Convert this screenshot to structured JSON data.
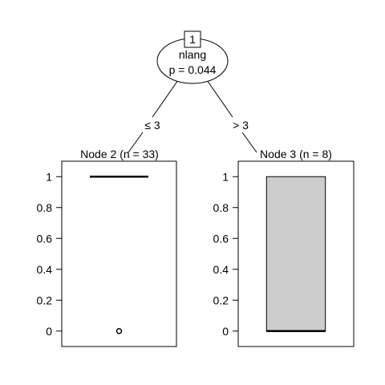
{
  "chart_data": {
    "type": "decision-tree",
    "root": {
      "id": "1",
      "variable": "nlang",
      "p_label": "p = 0.044"
    },
    "splits": [
      {
        "label": "≤ 3"
      },
      {
        "label": "> 3"
      }
    ],
    "terminals": [
      {
        "title": "Node 2 (n = 33)",
        "plot": "boxplot",
        "box": {
          "min": 1,
          "q1": 1,
          "median": 1,
          "q3": 1,
          "max": 1
        },
        "outliers": [
          0
        ]
      },
      {
        "title": "Node 3 (n = 8)",
        "plot": "boxplot",
        "box": {
          "min": 0,
          "q1": 0,
          "median": 0,
          "q3": 1,
          "max": 1
        },
        "outliers": []
      }
    ],
    "yticks": [
      {
        "value": 0,
        "label": "0"
      },
      {
        "value": 0.2,
        "label": "0.2"
      },
      {
        "value": 0.4,
        "label": "0.4"
      },
      {
        "value": 0.6,
        "label": "0.6"
      },
      {
        "value": 0.8,
        "label": "0.8"
      },
      {
        "value": 1,
        "label": "1"
      }
    ],
    "ylim": [
      -0.1,
      1.1
    ],
    "colors": {
      "box_fill": "#cccccc",
      "line": "#000000"
    }
  }
}
